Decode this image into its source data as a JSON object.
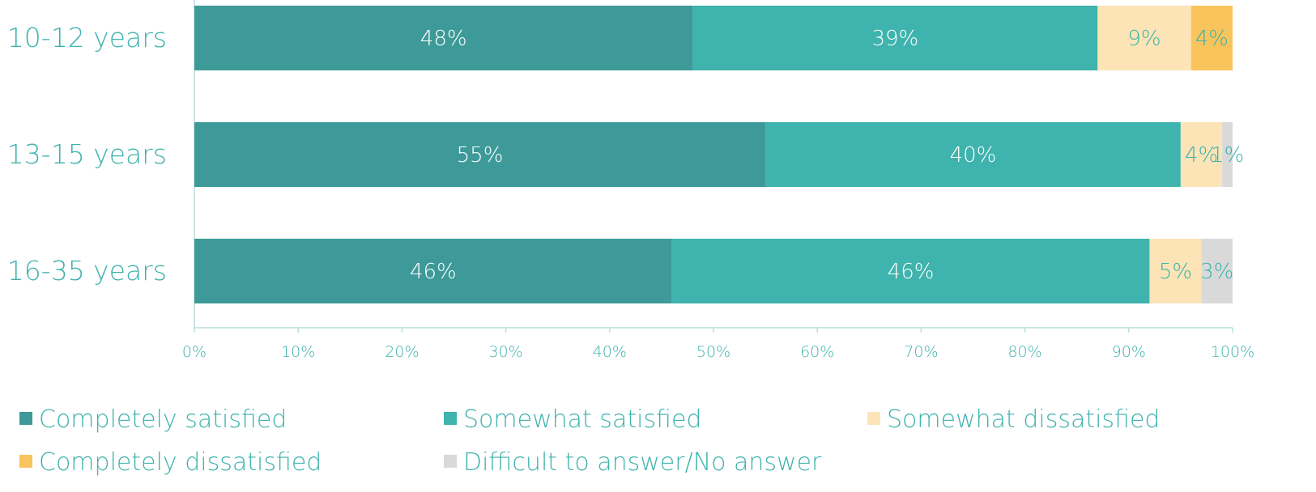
{
  "chart_data": {
    "type": "bar",
    "orientation": "horizontal",
    "stacked": true,
    "categories": [
      "10-12 years",
      "13-15 years",
      "16-35 years"
    ],
    "series": [
      {
        "name": "Completely satisfied",
        "values": [
          48,
          55,
          46
        ],
        "color": "#3D9A99",
        "label_color": "#ffffff"
      },
      {
        "name": "Somewhat satisfied",
        "values": [
          39,
          40,
          46
        ],
        "color": "#3FB3AD",
        "label_color": "#ffffff"
      },
      {
        "name": "Somewhat dissatisfied",
        "values": [
          9,
          4,
          5
        ],
        "color": "#FCE4B6",
        "label_color": "#3FB3AD"
      },
      {
        "name": "Completely dissatisfied",
        "values": [
          4,
          0,
          0
        ],
        "color": "#F9C45B",
        "label_color": "#3FB3AD"
      },
      {
        "name": "Difficult to answer/No answer",
        "values": [
          0,
          1,
          3
        ],
        "color": "#D9D9D9",
        "label_color": "#3FB3AD"
      }
    ],
    "data_labels": [
      [
        "48%",
        "39%",
        "9%",
        "4%",
        ""
      ],
      [
        "55%",
        "40%",
        "4%",
        "",
        "1%"
      ],
      [
        "46%",
        "46%",
        "5%",
        "",
        "3%"
      ]
    ],
    "x_ticks": [
      "0%",
      "10%",
      "20%",
      "30%",
      "40%",
      "50%",
      "60%",
      "70%",
      "80%",
      "90%",
      "100%"
    ],
    "xlim": [
      0,
      100
    ],
    "grid": false,
    "legend_position": "bottom",
    "colors": {
      "axis": "#B7E0DC",
      "text": "#3FB3AD"
    }
  }
}
